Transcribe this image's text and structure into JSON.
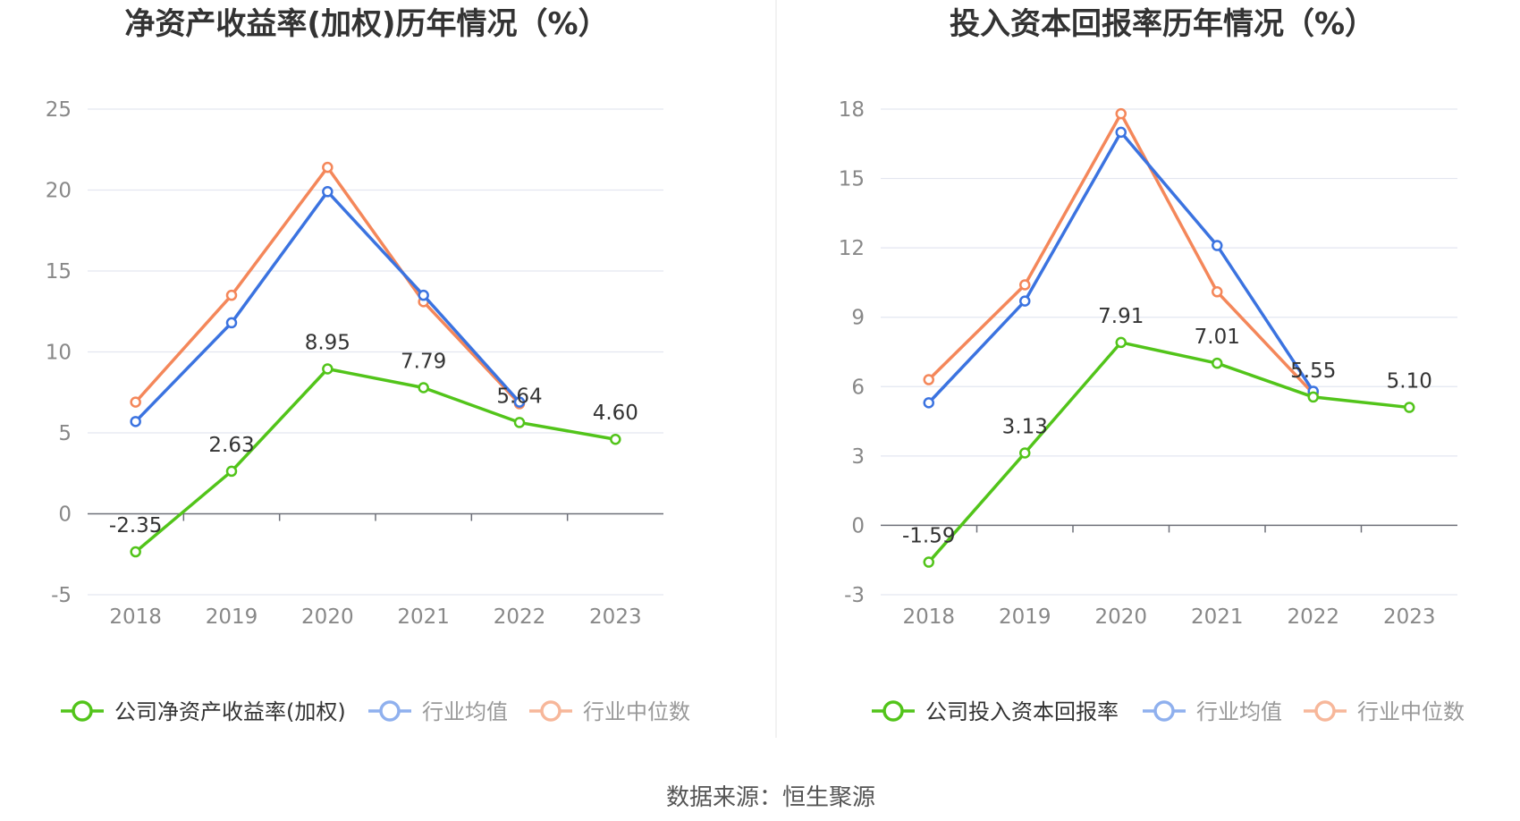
{
  "source_label": "数据来源：恒生聚源",
  "colors": {
    "company": "#52c41a",
    "average": "#3b73e0",
    "median": "#f4875a",
    "legend_muted_average": "#8fb0ee",
    "legend_muted_median": "#f7b79a"
  },
  "chart_data": [
    {
      "type": "line",
      "title": "净资产收益率(加权)历年情况（%）",
      "x": [
        "2018",
        "2019",
        "2020",
        "2021",
        "2022",
        "2023"
      ],
      "ylim": [
        -5,
        25
      ],
      "yticks": [
        -5,
        0,
        5,
        10,
        15,
        20,
        25
      ],
      "grid": true,
      "legend_position": "bottom",
      "series": [
        {
          "name": "公司净资产收益率(加权)",
          "key": "company",
          "values": [
            -2.35,
            2.63,
            8.95,
            7.79,
            5.64,
            4.6
          ],
          "labels": [
            "-2.35",
            "2.63",
            "8.95",
            "7.79",
            "5.64",
            "4.60"
          ]
        },
        {
          "name": "行业均值",
          "key": "average",
          "values": [
            5.7,
            11.8,
            19.9,
            13.5,
            6.9,
            null
          ]
        },
        {
          "name": "行业中位数",
          "key": "median",
          "values": [
            6.9,
            13.5,
            21.4,
            13.1,
            6.8,
            null
          ]
        }
      ]
    },
    {
      "type": "line",
      "title": "投入资本回报率历年情况（%）",
      "x": [
        "2018",
        "2019",
        "2020",
        "2021",
        "2022",
        "2023"
      ],
      "ylim": [
        -3,
        18
      ],
      "yticks": [
        -3,
        0,
        3,
        6,
        9,
        12,
        15,
        18
      ],
      "grid": true,
      "legend_position": "bottom",
      "series": [
        {
          "name": "公司投入资本回报率",
          "key": "company",
          "values": [
            -1.59,
            3.13,
            7.91,
            7.01,
            5.55,
            5.1
          ],
          "labels": [
            "-1.59",
            "3.13",
            "7.91",
            "7.01",
            "5.55",
            "5.10"
          ]
        },
        {
          "name": "行业均值",
          "key": "average",
          "values": [
            5.3,
            9.7,
            17.0,
            12.1,
            5.8,
            null
          ]
        },
        {
          "name": "行业中位数",
          "key": "median",
          "values": [
            6.3,
            10.4,
            17.8,
            10.1,
            5.7,
            null
          ]
        }
      ]
    }
  ]
}
